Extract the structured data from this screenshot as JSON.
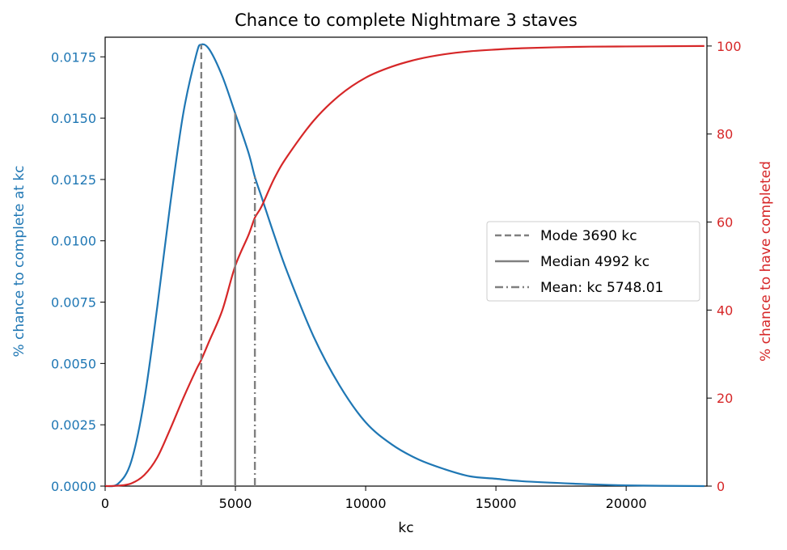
{
  "chart_data": {
    "type": "line",
    "title": "Chance to complete Nightmare 3 staves",
    "xlabel": "kc",
    "ylabel_left": "% chance to complete at kc",
    "ylabel_right": "% chance to have completed",
    "xlim": [
      0,
      23100
    ],
    "ylim_left": [
      0,
      0.0183
    ],
    "ylim_right": [
      0,
      102
    ],
    "x_ticks": [
      0,
      5000,
      10000,
      15000,
      20000
    ],
    "x_tick_labels": [
      "0",
      "5000",
      "10000",
      "15000",
      "20000"
    ],
    "y_left_ticks": [
      0,
      0.0025,
      0.005,
      0.0075,
      0.01,
      0.0125,
      0.015,
      0.0175
    ],
    "y_left_tick_labels": [
      "0.0000",
      "0.0025",
      "0.0050",
      "0.0075",
      "0.0100",
      "0.0125",
      "0.0150",
      "0.0175"
    ],
    "y_right_ticks": [
      0,
      20,
      40,
      60,
      80,
      100
    ],
    "y_right_tick_labels": [
      "0",
      "20",
      "40",
      "60",
      "80",
      "100"
    ],
    "left_axis_color": "#1f77b4",
    "right_axis_color": "#d62728",
    "marker_color": "#808080",
    "legend_position": "center-right",
    "series": [
      {
        "axis": "left",
        "color": "#1f77b4",
        "x": [
          0,
          500,
          1000,
          1500,
          2000,
          2500,
          3000,
          3500,
          3690,
          4000,
          4500,
          4992,
          5500,
          5748,
          6000,
          6500,
          7000,
          8000,
          9000,
          10000,
          11000,
          12000,
          13000,
          14000,
          15000,
          16000,
          18000,
          20000,
          23000
        ],
        "values": [
          0,
          0.0001,
          0.001,
          0.0035,
          0.0073,
          0.0115,
          0.0152,
          0.0176,
          0.018,
          0.0178,
          0.0167,
          0.0152,
          0.0136,
          0.0126,
          0.0118,
          0.0102,
          0.0087,
          0.0061,
          0.0041,
          0.0026,
          0.0017,
          0.0011,
          0.0007,
          0.0004,
          0.0003,
          0.0002,
          0.0001,
          3e-05,
          0.0
        ]
      },
      {
        "axis": "right",
        "color": "#d62728",
        "x": [
          0,
          500,
          1000,
          1500,
          2000,
          2500,
          3000,
          3500,
          3690,
          4000,
          4500,
          4992,
          5500,
          5748,
          6000,
          6500,
          7000,
          8000,
          9000,
          10000,
          11000,
          12000,
          13000,
          14000,
          15000,
          16000,
          18000,
          20000,
          23000
        ],
        "values": [
          0,
          0.1,
          0.6,
          2.5,
          6.5,
          13,
          20,
          26.5,
          28.7,
          33,
          40,
          50,
          57,
          61,
          63.5,
          70,
          75,
          83,
          88.8,
          92.8,
          95.3,
          97,
          98.1,
          98.8,
          99.2,
          99.5,
          99.8,
          99.9,
          100
        ]
      }
    ],
    "markers": [
      {
        "label": "Mode 3690 kc",
        "x": 3690,
        "style": "dashed",
        "top": 0.018
      },
      {
        "label": "Median 4992 kc",
        "x": 4992,
        "style": "solid",
        "top": 0.0152
      },
      {
        "label": "Mean: kc 5748.01",
        "x": 5748,
        "style": "dashdot",
        "top": 0.0126
      }
    ]
  }
}
